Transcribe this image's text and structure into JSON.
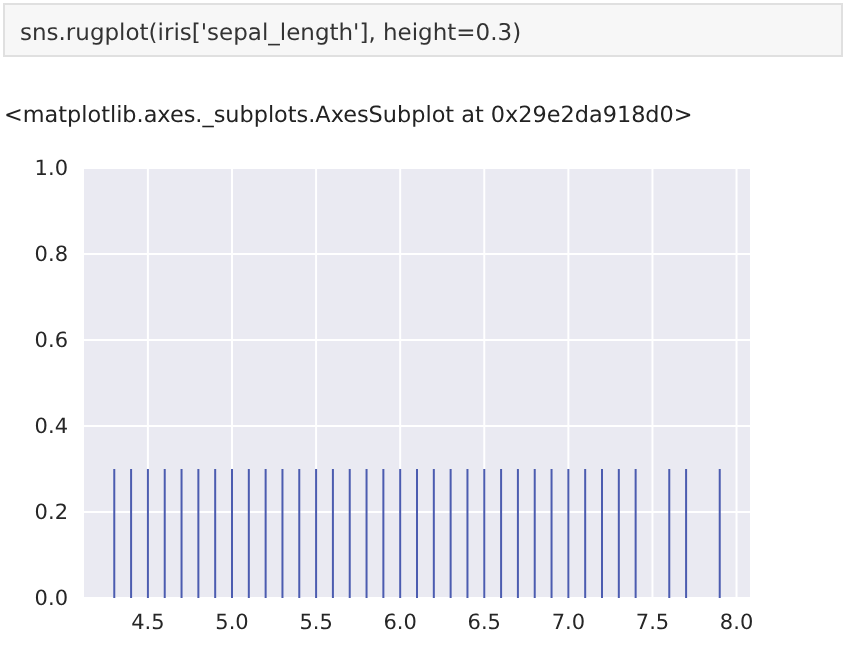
{
  "chart_data": {
    "type": "bar",
    "annotations": [
      "sns.rugplot(iris['sepal_length'], height=0.3)",
      "<matplotlib.axes._subplots.AxesSubplot at 0x29e2da918d0>"
    ],
    "x": [
      4.3,
      4.4,
      4.5,
      4.6,
      4.7,
      4.8,
      4.9,
      5.0,
      5.1,
      5.2,
      5.3,
      5.4,
      5.5,
      5.6,
      5.7,
      5.8,
      5.9,
      6.0,
      6.1,
      6.2,
      6.3,
      6.4,
      6.5,
      6.6,
      6.7,
      6.8,
      6.9,
      7.0,
      7.1,
      7.2,
      7.3,
      7.4,
      7.6,
      7.7,
      7.9
    ],
    "values": [
      0.3,
      0.3,
      0.3,
      0.3,
      0.3,
      0.3,
      0.3,
      0.3,
      0.3,
      0.3,
      0.3,
      0.3,
      0.3,
      0.3,
      0.3,
      0.3,
      0.3,
      0.3,
      0.3,
      0.3,
      0.3,
      0.3,
      0.3,
      0.3,
      0.3,
      0.3,
      0.3,
      0.3,
      0.3,
      0.3,
      0.3,
      0.3,
      0.3,
      0.3,
      0.3
    ],
    "color": "#4c5cb0",
    "xlim": [
      4.12,
      8.08
    ],
    "xticks": [
      {
        "value": 4.5,
        "label": "4.5"
      },
      {
        "value": 5,
        "label": "5.0"
      },
      {
        "value": 5.5,
        "label": "5.5"
      },
      {
        "value": 6,
        "label": "6.0"
      },
      {
        "value": 6.5,
        "label": "6.5"
      },
      {
        "value": 7,
        "label": "7.0"
      },
      {
        "value": 7.5,
        "label": "7.5"
      },
      {
        "value": 8,
        "label": "8.0"
      }
    ],
    "ylim": [
      0,
      1
    ],
    "yticks": [
      {
        "value": 0,
        "label": "0.0"
      },
      {
        "value": 0.2,
        "label": "0.2"
      },
      {
        "value": 0.4,
        "label": "0.4"
      },
      {
        "value": 0.6,
        "label": "0.6"
      },
      {
        "value": 0.8,
        "label": "0.8"
      },
      {
        "value": 1,
        "label": "1.0"
      }
    ],
    "grid": true
  }
}
